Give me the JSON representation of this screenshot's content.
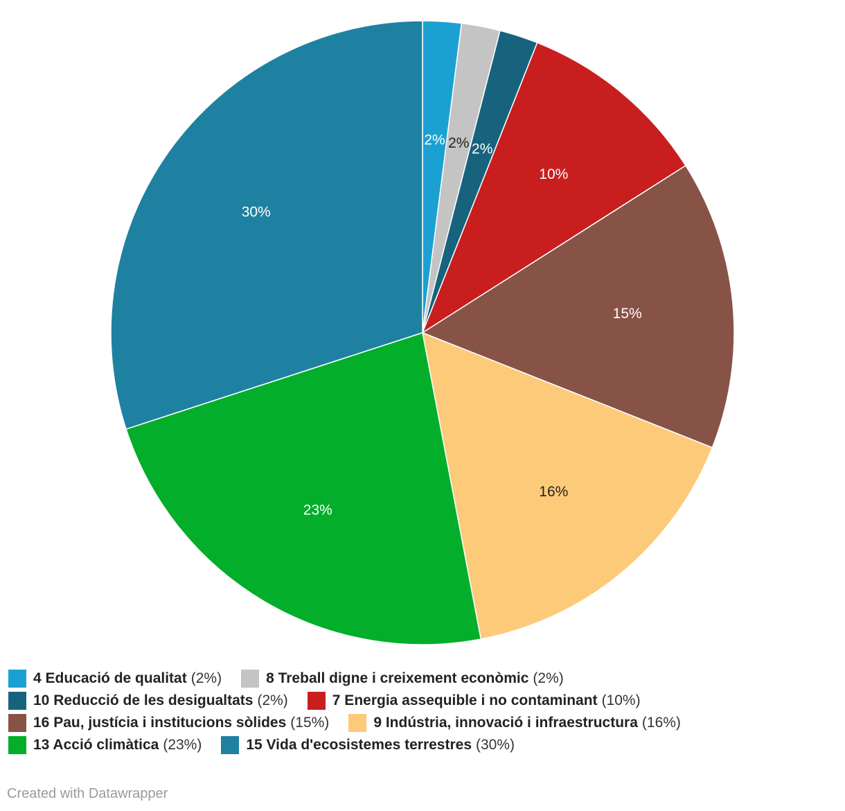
{
  "chart_data": {
    "type": "pie",
    "title": "",
    "slices": [
      {
        "label": "4 Educació de qualitat",
        "value": 2,
        "display": "2%",
        "legend_value": "(2%)",
        "color": "#1aa1d1",
        "label_color": "#ffffff"
      },
      {
        "label": "8 Treball digne i creixement econòmic",
        "value": 2,
        "display": "2%",
        "legend_value": "(2%)",
        "color": "#c4c4c4",
        "label_color": "#222222"
      },
      {
        "label": "10 Reducció de les desigualtats",
        "value": 2,
        "display": "2%",
        "legend_value": "(2%)",
        "color": "#17637e",
        "label_color": "#ffffff"
      },
      {
        "label": "7 Energia assequible i no contaminant",
        "value": 10,
        "display": "10%",
        "legend_value": "(10%)",
        "color": "#c81e1e",
        "label_color": "#ffffff"
      },
      {
        "label": "16 Pau, justícia i institucions sòlides",
        "value": 15,
        "display": "15%",
        "legend_value": "(15%)",
        "color": "#875347",
        "label_color": "#ffffff"
      },
      {
        "label": "9 Indústria, innovació i infraestructura",
        "value": 16,
        "display": "16%",
        "legend_value": "(16%)",
        "color": "#fdca7a",
        "label_color": "#222222"
      },
      {
        "label": "13 Acció climàtica",
        "value": 23,
        "display": "23%",
        "legend_value": "(23%)",
        "color": "#03ae2a",
        "label_color": "#ffffff"
      },
      {
        "label": "15 Vida d'ecosistemes terrestres",
        "value": 30,
        "display": "30%",
        "legend_value": "(30%)",
        "color": "#1f81a2",
        "label_color": "#ffffff"
      }
    ]
  },
  "footer": {
    "credit": "Created with Datawrapper"
  }
}
